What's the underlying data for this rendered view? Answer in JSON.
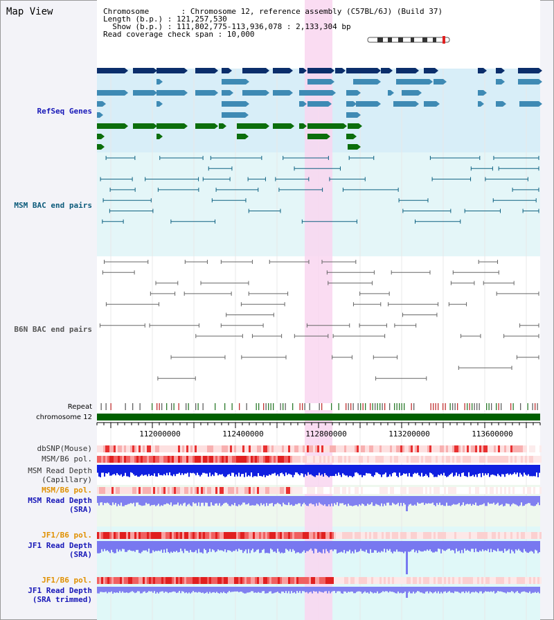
{
  "header": {
    "title": "Map View",
    "chromosome_line": "Chromosome       : Chromosome 12, reference assembly (C57BL/6J) (Build 37)",
    "length_line": "Length (b.p.) : 121,257,530",
    "show_line": " Show (b.p.) : 111,802,775-113,936,078 : 2,133,304 bp",
    "coverage_line": "Read coverage check span : 10,000"
  },
  "tracks": {
    "refseq": "RefSeq Genes",
    "msm_bac": "MSM BAC end pairs",
    "b6n_bac": "B6N BAC end pairs",
    "repeat": "Repeat",
    "chromosome": "chromosome 12",
    "dbsnp": "dbSNP(Mouse)",
    "msm_b6_pol_1": "MSM/B6 pol.",
    "msm_read_cap_1": "MSM Read Depth",
    "msm_read_cap_2": "(Capillary)",
    "msm_b6_pol_2": "MSM/B6 pol.",
    "msm_read_sra_1": "MSM Read Depth",
    "msm_read_sra_2": "(SRA)",
    "jf1_b6_pol_1": "JF1/B6 pol.",
    "jf1_read_sra_1": "JF1 Read Depth",
    "jf1_read_sra_2": "(SRA)",
    "jf1_b6_pol_2": "JF1/B6 pol.",
    "jf1_read_trim_1": "JF1 Read Depth",
    "jf1_read_trim_2": "(SRA trimmed)"
  },
  "axis": {
    "ticks": [
      "112000000",
      "112400000",
      "112800000",
      "113200000",
      "113600000"
    ]
  },
  "colors": {
    "highlight": "#f9d6f0",
    "refseq_bg": "#d8eef8",
    "bac_bg": "#e4f6f8",
    "dark_blue": "#0b2e6b",
    "mid_blue": "#3e8ab4",
    "green": "#0c6e0c",
    "read_blue": "#1020e0",
    "read_light": "#8080f0",
    "pol_red": "#e83030"
  }
}
